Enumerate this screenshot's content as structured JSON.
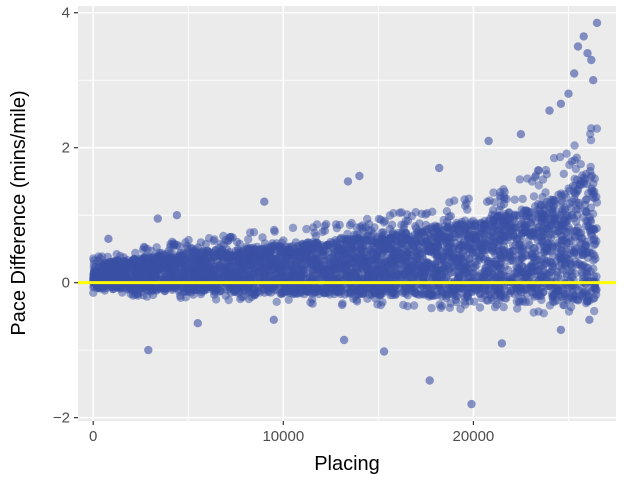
{
  "chart_data": {
    "type": "scatter",
    "title": "",
    "xlabel": "Placing",
    "ylabel": "Pace Difference (mins/mile)",
    "xlim": [
      -800,
      27500
    ],
    "ylim": [
      -2.05,
      4.1
    ],
    "x_ticks": [
      0,
      10000,
      20000
    ],
    "x_tick_labels": [
      "0",
      "10000",
      "20000"
    ],
    "y_ticks": [
      -2,
      0,
      2,
      4
    ],
    "y_tick_labels": [
      "−2",
      "0",
      "2",
      "4"
    ],
    "grid": true,
    "legend": "none",
    "reference_line": {
      "y": 0,
      "color": "#ffff00"
    },
    "colors": {
      "points": "#3a4fa3",
      "panel": "#ebebeb",
      "grid": "#ffffff"
    },
    "outlier_points": [
      {
        "x": 2900,
        "y": -1.0
      },
      {
        "x": 15300,
        "y": -1.02
      },
      {
        "x": 17700,
        "y": -1.45
      },
      {
        "x": 19900,
        "y": -1.8
      },
      {
        "x": 13200,
        "y": -0.85
      },
      {
        "x": 21500,
        "y": -0.9
      },
      {
        "x": 5500,
        "y": -0.6
      },
      {
        "x": 9500,
        "y": -0.55
      },
      {
        "x": 24600,
        "y": -0.7
      },
      {
        "x": 26100,
        "y": -0.55
      },
      {
        "x": 800,
        "y": 0.65
      },
      {
        "x": 3400,
        "y": 0.95
      },
      {
        "x": 4400,
        "y": 1.0
      },
      {
        "x": 9000,
        "y": 1.2
      },
      {
        "x": 13400,
        "y": 1.5
      },
      {
        "x": 14000,
        "y": 1.58
      },
      {
        "x": 18200,
        "y": 1.7
      },
      {
        "x": 20800,
        "y": 2.1
      },
      {
        "x": 22500,
        "y": 2.2
      },
      {
        "x": 24000,
        "y": 2.55
      },
      {
        "x": 24600,
        "y": 2.65
      },
      {
        "x": 25000,
        "y": 2.8
      },
      {
        "x": 25300,
        "y": 3.1
      },
      {
        "x": 25500,
        "y": 3.5
      },
      {
        "x": 25800,
        "y": 3.65
      },
      {
        "x": 26000,
        "y": 3.4
      },
      {
        "x": 26200,
        "y": 3.3
      },
      {
        "x": 26500,
        "y": 3.85
      },
      {
        "x": 26300,
        "y": 3.0
      }
    ],
    "density_envelope": [
      {
        "x": 0,
        "upper": 0.4,
        "lower": -0.15
      },
      {
        "x": 2000,
        "upper": 0.5,
        "lower": -0.2
      },
      {
        "x": 5000,
        "upper": 0.65,
        "lower": -0.25
      },
      {
        "x": 10000,
        "upper": 0.8,
        "lower": -0.3
      },
      {
        "x": 15000,
        "upper": 1.0,
        "lower": -0.35
      },
      {
        "x": 20000,
        "upper": 1.3,
        "lower": -0.4
      },
      {
        "x": 23000,
        "upper": 1.6,
        "lower": -0.45
      },
      {
        "x": 25000,
        "upper": 2.0,
        "lower": -0.5
      },
      {
        "x": 26500,
        "upper": 2.6,
        "lower": -0.55
      }
    ]
  }
}
